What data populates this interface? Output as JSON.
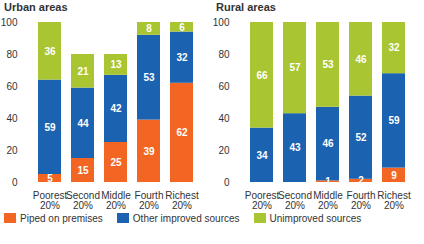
{
  "chart_data": [
    {
      "type": "bar",
      "title": "Urban areas",
      "stacked": true,
      "data_labels": true,
      "grid": false,
      "categories": [
        "Poorest 20%",
        "Second 20%",
        "Middle 20%",
        "Fourth 20%",
        "Richest 20%"
      ],
      "ylim": [
        0,
        100
      ],
      "yticks": [
        0,
        20,
        40,
        60,
        80,
        100
      ],
      "series": [
        {
          "name": "Piped on premises",
          "color": "#f26522",
          "values": [
            5,
            15,
            25,
            39,
            62
          ]
        },
        {
          "name": "Other improved sources",
          "color": "#1b62b0",
          "values": [
            59,
            44,
            42,
            53,
            32
          ]
        },
        {
          "name": "Unimproved sources",
          "color": "#a9c531",
          "values": [
            36,
            21,
            13,
            8,
            6
          ]
        }
      ]
    },
    {
      "type": "bar",
      "title": "Rural areas",
      "stacked": true,
      "data_labels": true,
      "grid": false,
      "categories": [
        "Poorest 20%",
        "Second 20%",
        "Middle 20%",
        "Fourth 20%",
        "Richest 20%"
      ],
      "ylim": [
        0,
        100
      ],
      "yticks": [
        0,
        20,
        40,
        60,
        80,
        100
      ],
      "series": [
        {
          "name": "Piped on premises",
          "color": "#f26522",
          "values": [
            null,
            null,
            1,
            2,
            9
          ]
        },
        {
          "name": "Other improved sources",
          "color": "#1b62b0",
          "values": [
            34,
            43,
            46,
            52,
            59
          ]
        },
        {
          "name": "Unimproved sources",
          "color": "#a9c531",
          "values": [
            66,
            57,
            53,
            46,
            32
          ]
        }
      ]
    }
  ]
}
